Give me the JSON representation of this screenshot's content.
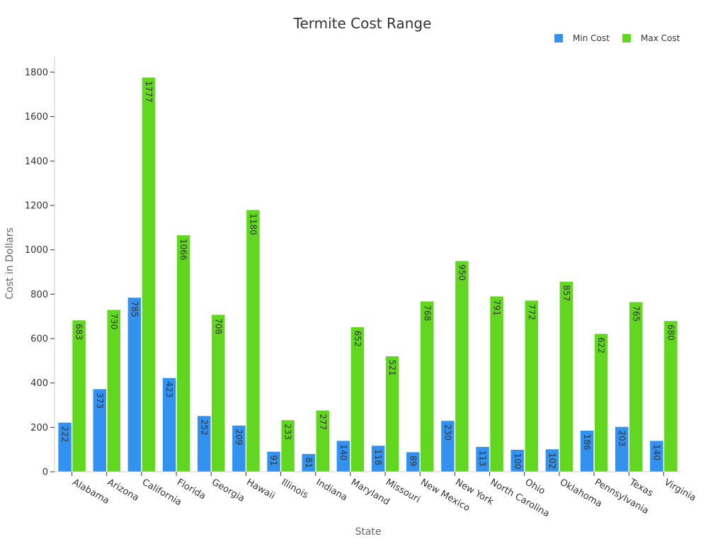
{
  "chart_data": {
    "type": "bar",
    "title": "Termite Cost Range",
    "xlabel": "State",
    "ylabel": "Cost in Dollars",
    "ylim": [
      0,
      1870
    ],
    "yticks": [
      0,
      200,
      400,
      600,
      800,
      1000,
      1200,
      1400,
      1600,
      1800
    ],
    "grid": false,
    "legend_position": "top-right",
    "categories": [
      "Alabama",
      "Arizona",
      "California",
      "Florida",
      "Georgia",
      "Hawaii",
      "Illinois",
      "Indiana",
      "Maryland",
      "Missouri",
      "New Mexico",
      "New York",
      "North Carolina",
      "Ohio",
      "Oklahoma",
      "Pennsylvania",
      "Texas",
      "Virginia"
    ],
    "series": [
      {
        "name": "Min Cost",
        "color": "#3392f0",
        "values": [
          222,
          373,
          785,
          423,
          252,
          209,
          91,
          81,
          140,
          118,
          89,
          230,
          113,
          100,
          102,
          186,
          203,
          140
        ]
      },
      {
        "name": "Max Cost",
        "color": "#62d720",
        "values": [
          683,
          730,
          1777,
          1066,
          708,
          1180,
          233,
          277,
          652,
          521,
          768,
          950,
          791,
          772,
          857,
          622,
          765,
          680
        ]
      }
    ]
  }
}
